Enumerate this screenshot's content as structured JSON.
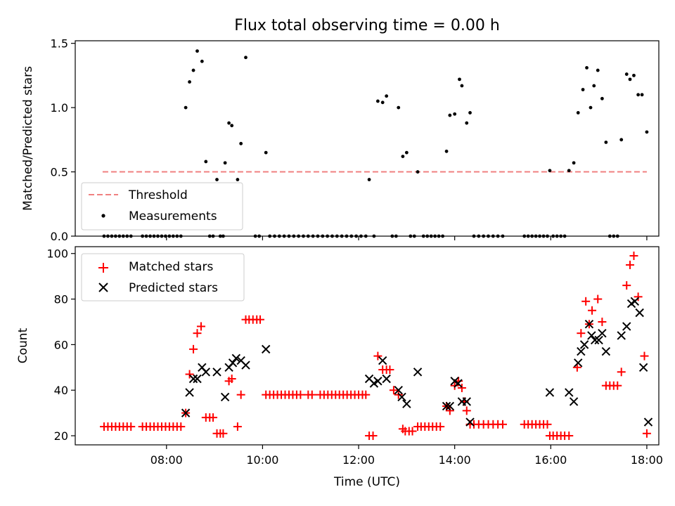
{
  "chart_data": [
    {
      "type": "scatter",
      "title": "Flux total observing time = 0.00 h",
      "xlabel": "",
      "ylabel": "Matched/Predicted stars",
      "xlim_hours": [
        6.1,
        18.25
      ],
      "ylim": [
        0,
        1.52
      ],
      "yticks": [
        "0.0",
        "0.5",
        "1.0",
        "1.5"
      ],
      "yticks_values": [
        0,
        0.5,
        1.0,
        1.5
      ],
      "threshold": {
        "name": "Threshold",
        "value": 0.5,
        "x_start_hours": 6.67,
        "x_end_hours": 18.0,
        "color": "#f08080"
      },
      "measurements": {
        "name": "Measurements",
        "color": "#000000",
        "x_hours": [
          8.4,
          8.48,
          8.56,
          8.64,
          8.74,
          8.82,
          9.05,
          9.22,
          9.3,
          9.36,
          9.48,
          9.55,
          9.65,
          10.07,
          12.22,
          12.4,
          12.5,
          12.58,
          12.83,
          12.92,
          13.0,
          13.23,
          13.83,
          13.9,
          14.0,
          14.1,
          14.15,
          14.25,
          14.32,
          15.98,
          16.38,
          16.48,
          16.57,
          16.67,
          16.75,
          16.83,
          16.9,
          16.98,
          17.07,
          17.15,
          17.47,
          17.58,
          17.65,
          17.73,
          17.82,
          17.9,
          18.0
        ],
        "y": [
          1.0,
          1.2,
          1.29,
          1.44,
          1.36,
          0.58,
          0.44,
          0.57,
          0.88,
          0.86,
          0.44,
          0.72,
          1.39,
          0.65,
          0.44,
          1.05,
          1.04,
          1.09,
          1.0,
          0.62,
          0.65,
          0.5,
          0.66,
          0.94,
          0.95,
          1.22,
          1.17,
          0.88,
          0.96,
          0.51,
          0.51,
          0.57,
          0.96,
          1.14,
          1.31,
          1.0,
          1.17,
          1.29,
          1.07,
          0.73,
          0.75,
          1.26,
          1.22,
          1.25,
          1.1,
          1.1,
          0.81
        ],
        "zeros_x_hours": [
          6.7,
          6.78,
          6.86,
          6.94,
          7.02,
          7.1,
          7.18,
          7.26,
          7.5,
          7.58,
          7.66,
          7.74,
          7.82,
          7.9,
          7.98,
          8.06,
          8.14,
          8.22,
          8.3,
          8.9,
          8.97,
          9.12,
          9.18,
          9.85,
          9.93,
          10.15,
          10.25,
          10.35,
          10.45,
          10.55,
          10.65,
          10.75,
          10.85,
          10.95,
          11.05,
          11.15,
          11.25,
          11.35,
          11.45,
          11.55,
          11.65,
          11.75,
          11.85,
          11.95,
          12.05,
          12.15,
          12.32,
          12.7,
          12.78,
          13.08,
          13.16,
          13.35,
          13.43,
          13.51,
          13.59,
          13.67,
          13.75,
          14.4,
          14.5,
          14.6,
          14.7,
          14.8,
          14.9,
          15.0,
          15.45,
          15.53,
          15.61,
          15.69,
          15.77,
          15.85,
          15.93,
          16.05,
          16.13,
          16.21,
          16.29,
          17.23,
          17.31,
          17.39
        ]
      },
      "legend": {
        "position": "lower-left",
        "entries": [
          "Threshold",
          "Measurements"
        ]
      },
      "grid": false
    },
    {
      "type": "scatter",
      "title": "",
      "xlabel": "Time (UTC)",
      "ylabel": "Count",
      "xlim_hours": [
        6.1,
        18.25
      ],
      "ylim": [
        16,
        103
      ],
      "yticks": [
        "20",
        "40",
        "60",
        "80",
        "100"
      ],
      "yticks_values": [
        20,
        40,
        60,
        80,
        100
      ],
      "xticks": [
        "08:00",
        "10:00",
        "12:00",
        "14:00",
        "16:00",
        "18:00"
      ],
      "xticks_values_hours": [
        8,
        10,
        12,
        14,
        16,
        18
      ],
      "series": [
        {
          "name": "Matched stars",
          "marker": "plus",
          "color": "#ff0000",
          "x_hours": [
            6.7,
            6.78,
            6.86,
            6.94,
            7.02,
            7.1,
            7.18,
            7.26,
            7.5,
            7.58,
            7.66,
            7.74,
            7.82,
            7.9,
            7.98,
            8.06,
            8.14,
            8.22,
            8.3,
            8.4,
            8.48,
            8.56,
            8.64,
            8.72,
            8.82,
            8.9,
            8.97,
            9.05,
            9.12,
            9.18,
            9.3,
            9.36,
            9.48,
            9.55,
            9.65,
            9.72,
            9.8,
            9.88,
            9.95,
            10.07,
            10.15,
            10.23,
            10.31,
            10.39,
            10.47,
            10.55,
            10.63,
            10.71,
            10.79,
            10.95,
            11.03,
            11.2,
            11.28,
            11.36,
            11.44,
            11.52,
            11.6,
            11.68,
            11.76,
            11.84,
            11.92,
            12.0,
            12.08,
            12.15,
            12.22,
            12.3,
            12.4,
            12.5,
            12.58,
            12.65,
            12.73,
            12.83,
            12.92,
            12.97,
            13.05,
            13.12,
            13.23,
            13.3,
            13.38,
            13.46,
            13.54,
            13.62,
            13.7,
            13.83,
            13.9,
            14.0,
            14.08,
            14.15,
            14.2,
            14.25,
            14.32,
            14.4,
            14.5,
            14.6,
            14.7,
            14.8,
            14.9,
            15.0,
            15.45,
            15.53,
            15.61,
            15.69,
            15.77,
            15.85,
            15.93,
            15.98,
            16.05,
            16.13,
            16.21,
            16.29,
            16.38,
            16.55,
            16.63,
            16.73,
            16.8,
            16.86,
            16.98,
            17.07,
            17.15,
            17.23,
            17.31,
            17.39,
            17.47,
            17.58,
            17.65,
            17.73,
            17.82,
            17.95,
            18.0
          ],
          "y": [
            24,
            24,
            24,
            24,
            24,
            24,
            24,
            24,
            24,
            24,
            24,
            24,
            24,
            24,
            24,
            24,
            24,
            24,
            24,
            30,
            47,
            58,
            65,
            68,
            28,
            28,
            28,
            21,
            21,
            21,
            44,
            45,
            24,
            38,
            71,
            71,
            71,
            71,
            71,
            38,
            38,
            38,
            38,
            38,
            38,
            38,
            38,
            38,
            38,
            38,
            38,
            38,
            38,
            38,
            38,
            38,
            38,
            38,
            38,
            38,
            38,
            38,
            38,
            38,
            20,
            20,
            55,
            49,
            49,
            49,
            40,
            38,
            23,
            22,
            22,
            22,
            24,
            24,
            24,
            24,
            24,
            24,
            24,
            33,
            31,
            42,
            44,
            41,
            35,
            31,
            25,
            25,
            25,
            25,
            25,
            25,
            25,
            25,
            25,
            25,
            25,
            25,
            25,
            25,
            25,
            20,
            20,
            20,
            20,
            20,
            20,
            50,
            65,
            79,
            69,
            75,
            80,
            70,
            42,
            42,
            42,
            42,
            48,
            86,
            95,
            99,
            81,
            55,
            21
          ]
        },
        {
          "name": "Predicted stars",
          "marker": "x",
          "color": "#000000",
          "x_hours": [
            8.4,
            8.48,
            8.56,
            8.64,
            8.74,
            8.82,
            9.05,
            9.22,
            9.3,
            9.38,
            9.45,
            9.55,
            9.65,
            10.07,
            12.22,
            12.32,
            12.4,
            12.5,
            12.58,
            12.83,
            12.9,
            13.0,
            13.23,
            13.83,
            13.9,
            14.0,
            14.07,
            14.15,
            14.25,
            14.32,
            15.98,
            16.38,
            16.48,
            16.57,
            16.63,
            16.7,
            16.8,
            16.85,
            16.92,
            17.0,
            17.07,
            17.15,
            17.47,
            17.58,
            17.68,
            17.75,
            17.85,
            17.93,
            18.03
          ],
          "y": [
            30,
            39,
            45,
            45,
            50,
            48,
            48,
            37,
            50,
            52,
            54,
            53,
            51,
            58,
            45,
            43,
            44,
            53,
            45,
            40,
            37,
            34,
            48,
            33,
            33,
            44,
            43,
            35,
            35,
            26,
            39,
            39,
            35,
            52,
            57,
            60,
            69,
            64,
            62,
            62,
            65,
            57,
            64,
            68,
            78,
            79,
            74,
            50,
            26
          ]
        }
      ],
      "legend": {
        "position": "top-left",
        "entries": [
          "Matched stars",
          "Predicted stars"
        ]
      },
      "grid": false
    }
  ]
}
